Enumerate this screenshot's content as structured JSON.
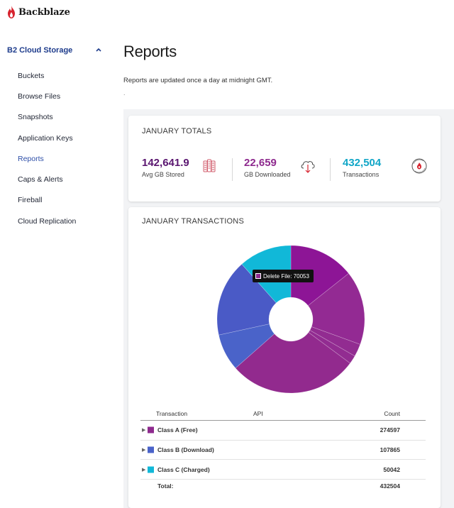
{
  "brand": {
    "name": "Backblaze",
    "color": "#d7232e"
  },
  "sidebar": {
    "section_label": "B2 Cloud Storage",
    "items": [
      {
        "label": "Buckets",
        "active": false
      },
      {
        "label": "Browse Files",
        "active": false
      },
      {
        "label": "Snapshots",
        "active": false
      },
      {
        "label": "Application Keys",
        "active": false
      },
      {
        "label": "Reports",
        "active": true
      },
      {
        "label": "Caps & Alerts",
        "active": false
      },
      {
        "label": "Fireball",
        "active": false
      },
      {
        "label": "Cloud Replication",
        "active": false
      }
    ]
  },
  "page": {
    "title": "Reports",
    "note": "Reports are updated once a day at midnight GMT.",
    "dot": "."
  },
  "totals": {
    "title": "JANUARY TOTALS",
    "stats": [
      {
        "value": "142,641.9",
        "label": "Avg GB Stored",
        "color": "#5a1670",
        "icon": "storage-servers-icon"
      },
      {
        "value": "22,659",
        "label": "GB Downloaded",
        "color": "#8e2a8e",
        "icon": "cloud-download-icon"
      },
      {
        "value": "432,504",
        "label": "Transactions",
        "color": "#11a6c7",
        "icon": "transactions-icon"
      }
    ]
  },
  "transactions": {
    "title": "JANUARY TRANSACTIONS",
    "tooltip": "Delete File: 70053",
    "headers": {
      "transaction": "Transaction",
      "api": "API",
      "count": "Count"
    },
    "rows": [
      {
        "name": "Class A (Free)",
        "count": "274597",
        "color": "#8e2a8e"
      },
      {
        "name": "Class B (Download)",
        "count": "107865",
        "color": "#4a63c9"
      },
      {
        "name": "Class C (Charged)",
        "count": "50042",
        "color": "#11b8d8"
      }
    ],
    "total_label": "Total:",
    "total_value": "432504"
  },
  "chart_data": {
    "type": "pie",
    "series": [
      {
        "class": "Class A (Free)",
        "values": [
          62000,
          70053,
          12000,
          8000,
          122544
        ],
        "color": "#8e2a8e"
      },
      {
        "class": "Class B (Download)",
        "values": [
          35000,
          72865
        ],
        "color": "#4a63c9"
      },
      {
        "class": "Class C (Charged)",
        "values": [
          50042
        ],
        "color": "#11b8d8"
      }
    ],
    "slice_colors": [
      "#8d1596",
      "#932a93",
      "#922c91",
      "#922c91",
      "#922a8e",
      "#4a63c9",
      "#4a5ac6",
      "#11b8d8"
    ],
    "donut": true
  }
}
